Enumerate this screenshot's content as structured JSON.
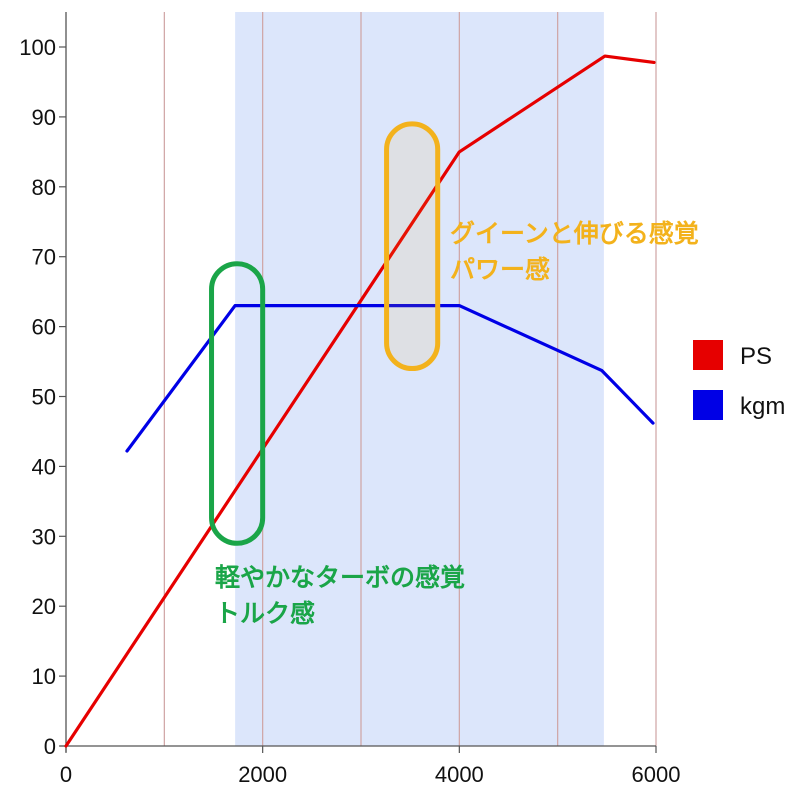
{
  "chart_data": {
    "type": "line",
    "xlim": [
      0,
      6000
    ],
    "ylim": [
      0,
      100
    ],
    "x_ticks": [
      "0",
      "2000",
      "4000",
      "6000"
    ],
    "y_ticks": [
      "0",
      "10",
      "20",
      "30",
      "40",
      "50",
      "60",
      "70",
      "80",
      "90",
      "100"
    ],
    "vertical_grid_x": [
      1000,
      2000,
      3000,
      4000,
      5000,
      6000
    ],
    "shaded_band": {
      "x_range": [
        1720,
        5470
      ],
      "color": "#dce6fb"
    },
    "series": [
      {
        "name": "PS",
        "color": "#e60000",
        "points": [
          [
            0,
            0
          ],
          [
            4000,
            85
          ],
          [
            5480,
            98.7
          ],
          [
            5980,
            97.8
          ]
        ]
      },
      {
        "name": "kgm",
        "color": "#0000e6",
        "points": [
          [
            620,
            42.2
          ],
          [
            1720,
            63
          ],
          [
            4000,
            63
          ],
          [
            5450,
            53.7
          ],
          [
            5970,
            46.2
          ]
        ]
      }
    ],
    "legend": {
      "position": "right",
      "items": [
        {
          "label": "PS",
          "color": "#e60000"
        },
        {
          "label": "kgm",
          "color": "#0000e6"
        }
      ]
    },
    "annotations": [
      {
        "id": "turbo",
        "color": "#1aa548",
        "ellipse_x": [
          1480,
          2000
        ],
        "ellipse_y": [
          29,
          69
        ],
        "text_lines": [
          "軽やかなターボの感覚",
          "トルク感"
        ]
      },
      {
        "id": "power",
        "color": "#f3b21c",
        "ellipse_x": [
          3260,
          3780
        ],
        "ellipse_y": [
          54,
          89
        ],
        "text_lines": [
          "グイーンと伸びる感覚",
          "パワー感"
        ]
      }
    ]
  }
}
